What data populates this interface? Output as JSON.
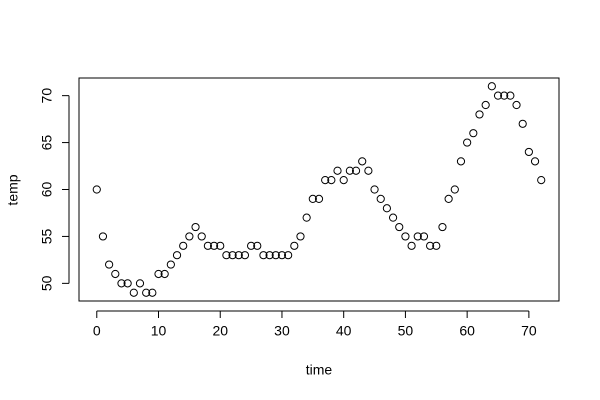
{
  "chart_data": {
    "type": "scatter",
    "x_label": "time",
    "y_label": "temp",
    "x": [
      0,
      1,
      2,
      3,
      4,
      5,
      6,
      7,
      8,
      9,
      10,
      11,
      12,
      13,
      14,
      15,
      16,
      17,
      18,
      19,
      20,
      21,
      22,
      23,
      24,
      25,
      26,
      27,
      28,
      29,
      30,
      31,
      32,
      33,
      34,
      35,
      36,
      37,
      38,
      39,
      40,
      41,
      42,
      43,
      44,
      45,
      46,
      47,
      48,
      49,
      50,
      51,
      52,
      53,
      54,
      55,
      56,
      57,
      58,
      59,
      60,
      61,
      62,
      63,
      64,
      65,
      66,
      67,
      68,
      69,
      70,
      71,
      72
    ],
    "values": [
      60,
      55,
      52,
      51,
      50,
      50,
      49,
      50,
      49,
      49,
      51,
      51,
      52,
      53,
      54,
      55,
      56,
      55,
      54,
      54,
      54,
      53,
      53,
      53,
      53,
      54,
      54,
      53,
      53,
      53,
      53,
      53,
      54,
      55,
      57,
      59,
      59,
      61,
      61,
      62,
      61,
      62,
      62,
      63,
      62,
      60,
      59,
      58,
      57,
      56,
      55,
      54,
      55,
      55,
      54,
      54,
      56,
      59,
      60,
      63,
      65,
      66,
      68,
      69,
      71,
      70,
      70,
      70,
      69,
      67,
      64,
      63,
      61
    ],
    "xlim": [
      -2.88,
      74.88
    ],
    "ylim": [
      48.12,
      71.88
    ],
    "xticks": [
      0,
      10,
      20,
      30,
      40,
      50,
      60,
      70
    ],
    "yticks": [
      50,
      55,
      60,
      65,
      70
    ],
    "color": "#000000"
  }
}
